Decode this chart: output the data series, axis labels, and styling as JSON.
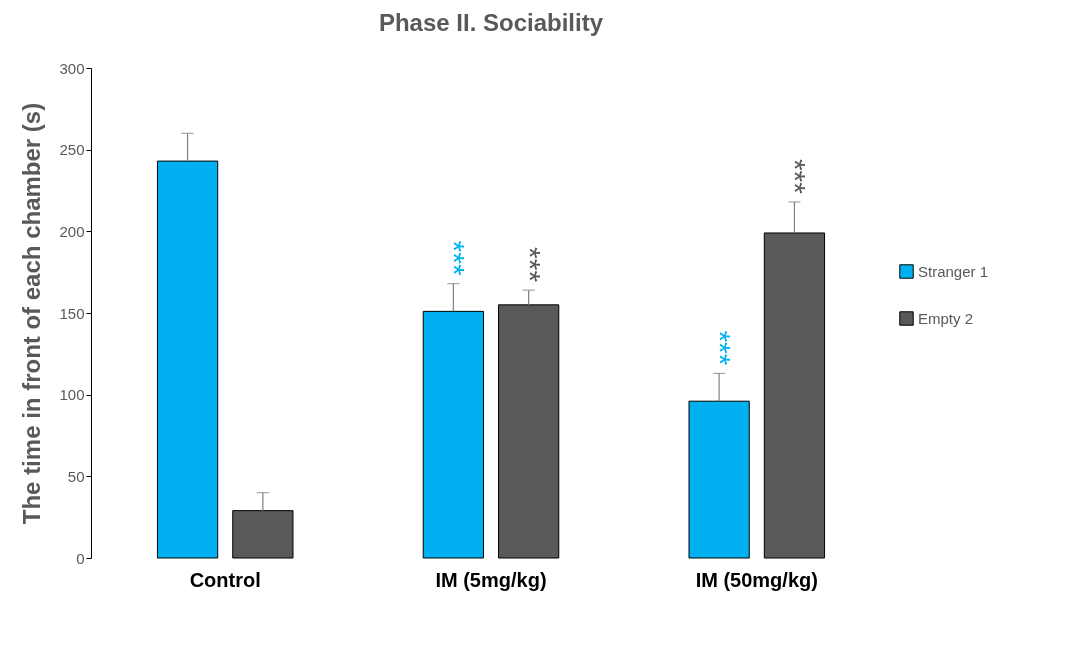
{
  "chart_data": {
    "type": "bar",
    "title": "Phase II. Sociability",
    "ylabel": "The time in front of each chamber (s)",
    "categories": [
      "Control",
      "IM (5mg/kg)",
      "IM (50mg/kg)"
    ],
    "series": [
      {
        "name": "Stranger 1",
        "color": "#00b0f0",
        "values": [
          243,
          151,
          96
        ],
        "errors": [
          [
            243,
            260
          ],
          [
            151,
            168
          ],
          [
            96,
            113
          ]
        ],
        "value_labels": [
          null,
          "***",
          "***"
        ]
      },
      {
        "name": "Empty 2",
        "color": "#595959",
        "values": [
          29,
          155,
          199
        ],
        "errors": [
          [
            29,
            40
          ],
          [
            155,
            164
          ],
          [
            199,
            218
          ]
        ],
        "value_labels": [
          null,
          "***",
          "***"
        ]
      }
    ],
    "ylim": [
      0,
      300
    ],
    "yticks": [
      0,
      50,
      100,
      150,
      200,
      250,
      300
    ],
    "grid": false,
    "legend": "right"
  }
}
